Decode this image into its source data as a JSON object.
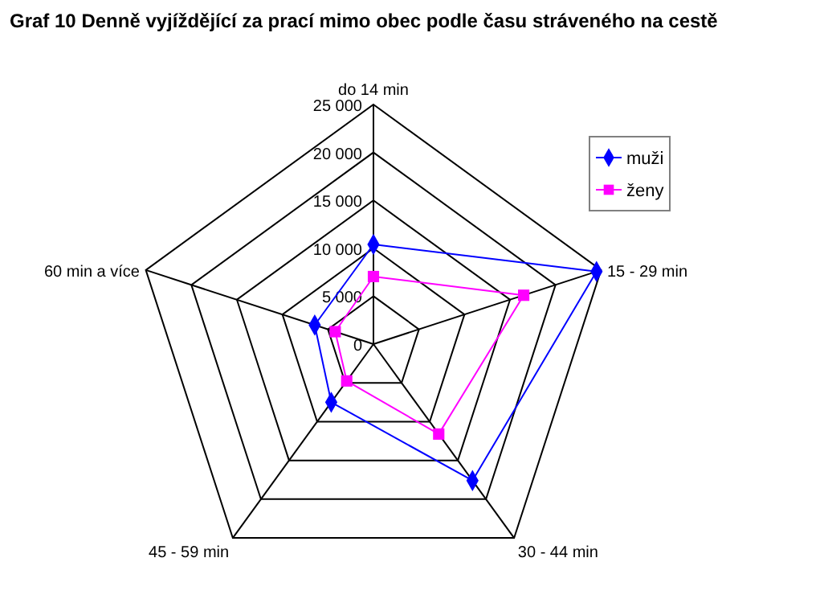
{
  "chart_data": {
    "type": "radar",
    "title": "Graf 10  Denně vyjíždějící za prací mimo obec podle času stráveného na cestě",
    "categories": [
      "do 14 min",
      "15 - 29 min",
      "30 - 44 min",
      "45 - 59 min",
      "60 min a více"
    ],
    "series": [
      {
        "name": "muži",
        "color": "#0000ff",
        "values": [
          10400,
          24500,
          17600,
          7500,
          6450
        ]
      },
      {
        "name": "ženy",
        "color": "#ff00ff",
        "values": [
          7050,
          16500,
          11600,
          4750,
          4200
        ]
      }
    ],
    "ylim": [
      0,
      25000
    ],
    "yticks": [
      0,
      {
        "value": 5000,
        "label": "5 000"
      },
      {
        "value": 10000,
        "label": "10 000"
      },
      {
        "value": 15000,
        "label": "15 000"
      },
      {
        "value": 20000,
        "label": "20 000"
      },
      {
        "value": 25000,
        "label": "25 000"
      }
    ],
    "grid": true,
    "legend": "top right",
    "marker": "diamond"
  }
}
